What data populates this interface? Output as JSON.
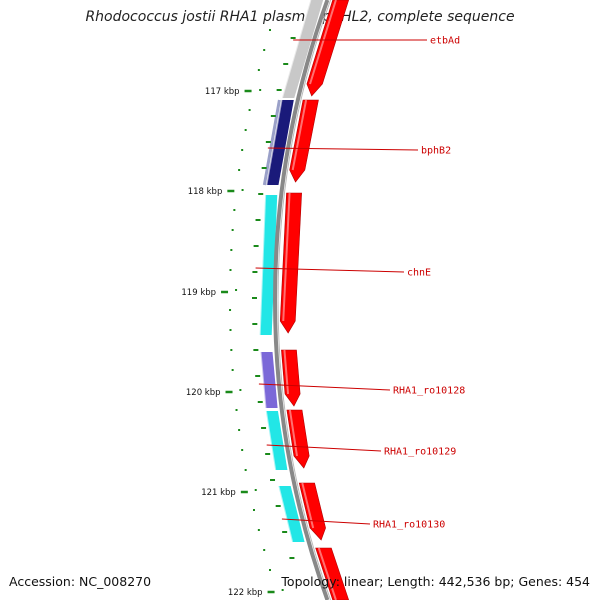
{
  "title": "Rhodococcus jostii RHA1 plasmid pRHL2, complete sequence",
  "accession_text": "Accession: NC_008270",
  "summary_text": "Topology: linear; Length: 442,536 bp; Genes: 454",
  "ruler_labels": [
    "117 kbp",
    "118 kbp",
    "119 kbp",
    "120 kbp",
    "121 kbp",
    "122 kbp"
  ],
  "gene_labels": [
    "etbAd",
    "bphB2",
    "chnE",
    "RHA1_ro10128",
    "RHA1_ro10129",
    "RHA1_ro10130"
  ],
  "colors": {
    "backbone": "#888888",
    "cds": "#ff0000",
    "ruler": "#1a8a1a",
    "label": "#cc0000",
    "category_grey": "#c8c8c8",
    "category_navy": "#1a1a7a",
    "category_cyan": "#22e6e6",
    "category_purple": "#7b68d8"
  }
}
